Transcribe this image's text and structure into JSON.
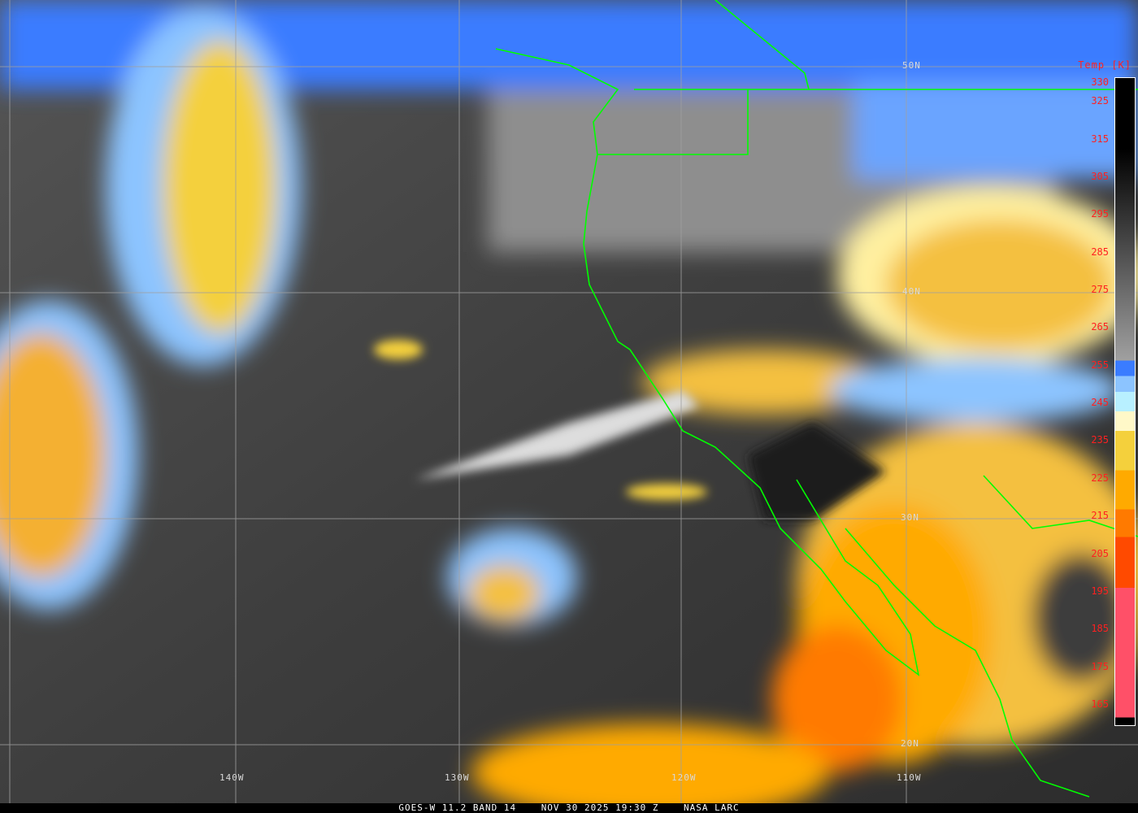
{
  "caption": {
    "satellite": "GOES-W 11.2 BAND 14",
    "datetime": "NOV 30 2025 19:30 Z",
    "source": "NASA LARC"
  },
  "grid": {
    "latitudes": [
      "50N",
      "40N",
      "30N",
      "20N"
    ],
    "longitudes": [
      "140W",
      "130W",
      "120W",
      "110W"
    ]
  },
  "colorbar": {
    "title": "Temp [K]",
    "ticks": [
      "330",
      "325",
      "315",
      "305",
      "295",
      "285",
      "275",
      "265",
      "255",
      "245",
      "235",
      "225",
      "215",
      "205",
      "195",
      "185",
      "175",
      "165"
    ],
    "range_k": [
      165,
      330
    ],
    "colors": {
      "warm_top": "#000000",
      "warm_gray": "#a0a0a0",
      "blue": "#3a7cff",
      "light_blue": "#8cc4ff",
      "cyan": "#b8f0ff",
      "pale_yellow": "#fff8c8",
      "yellow": "#f4d03c",
      "orange": "#ffaa00",
      "dark_orange": "#ff7a00",
      "red_orange": "#ff4a00",
      "pink": "#ff5068"
    }
  },
  "colors": {
    "borders": "#00ff00",
    "grid": "#a0a0a0",
    "labels_colorbar": "#ff2020"
  }
}
